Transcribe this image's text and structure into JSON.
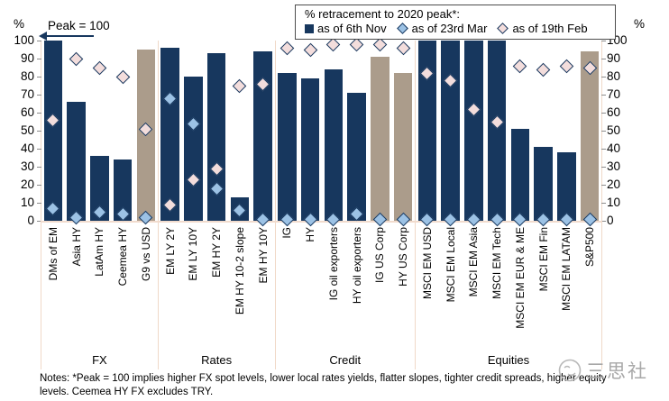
{
  "annotations": {
    "peak_label": "Peak = 100",
    "pct_left": "%",
    "pct_right": "%"
  },
  "legend": {
    "title": "% retracement to 2020 peak*:",
    "items": [
      {
        "label": "as of 6th Nov",
        "marker": "square",
        "color": "#17375e"
      },
      {
        "label": "as of 23rd Mar",
        "marker": "diamond",
        "color": "#9cc2e5"
      },
      {
        "label": "as of 19th Feb",
        "marker": "diamond",
        "color": "#f3dddc"
      }
    ]
  },
  "axis": {
    "ticks": [
      100,
      90,
      80,
      70,
      60,
      50,
      40,
      30,
      20,
      10,
      0
    ]
  },
  "chart_data": {
    "type": "bar",
    "title": "% retracement to 2020 peak*:",
    "ylabel": "%",
    "ylim": [
      0,
      100
    ],
    "grid": false,
    "legend_position": "top",
    "categories": [
      "DMs of EM",
      "Asia HY",
      "LatAm HY",
      "Ceemea HY",
      "G9 vs USD",
      "EM LY 2Y",
      "EM LY 10Y",
      "EM HY 2Y",
      "EM HY 10-2 slope",
      "EM HY 10Y",
      "IG",
      "HY",
      "IG oil exporters",
      "HY oil exporters",
      "IG US Corp",
      "HY US Corp",
      "MSCI EM USD",
      "MSCI EM Local",
      "MSCI EM Asia",
      "MSCI EM Tech",
      "MSCI EM EUR & ME",
      "MSCI EM Fin",
      "MSCI EM LATAM",
      "S&P500"
    ],
    "groups": [
      {
        "label": "FX",
        "size": 5
      },
      {
        "label": "Rates",
        "size": 5
      },
      {
        "label": "Credit",
        "size": 6
      },
      {
        "label": "Equities",
        "size": 8
      }
    ],
    "series": [
      {
        "name": "as of 6th Nov",
        "type": "bar",
        "values": [
          100,
          66,
          36,
          34,
          95,
          96,
          80,
          93,
          13,
          94,
          82,
          79,
          84,
          71,
          91,
          82,
          100,
          100,
          100,
          100,
          51,
          41,
          38,
          94
        ]
      },
      {
        "name": "as of 23rd Mar",
        "type": "scatter-diamond",
        "values": [
          7,
          2,
          5,
          4,
          2,
          68,
          54,
          18,
          6,
          1,
          1,
          1,
          1,
          4,
          1,
          1,
          1,
          1,
          1,
          1,
          1,
          1,
          1,
          1
        ]
      },
      {
        "name": "as of 19th Feb",
        "type": "scatter-diamond",
        "values": [
          56,
          90,
          85,
          80,
          51,
          9,
          23,
          29,
          75,
          76,
          96,
          95,
          98,
          98,
          98,
          96,
          82,
          78,
          62,
          55,
          86,
          84,
          86,
          85
        ]
      }
    ],
    "tan_bar_categories": [
      "G9 vs USD",
      "IG US Corp",
      "HY US Corp",
      "S&P500"
    ]
  },
  "notes": {
    "text": "Notes: *Peak = 100 implies higher FX spot levels, lower local rates yields, flatter slopes, tighter credit spreads, higher equity levels. Ceemea HY FX excludes TRY."
  },
  "watermark": {
    "text": "三思社"
  },
  "colors": {
    "bar_navy": "#17375e",
    "bar_tan": "#ab9c8b",
    "diamond_blue": "#9cc2e5",
    "diamond_pink": "#f3dddc",
    "separator": "#f0d9c8"
  }
}
